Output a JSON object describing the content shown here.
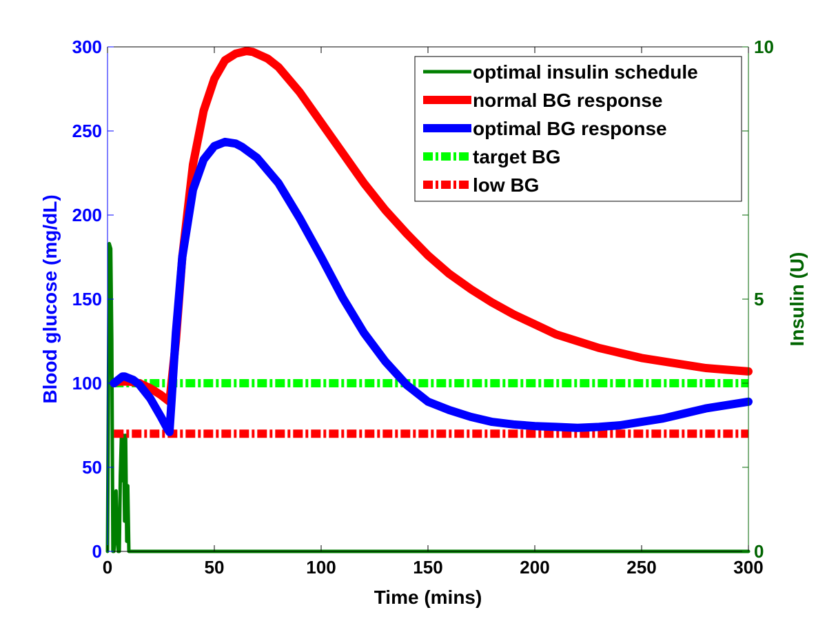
{
  "chart_data": {
    "type": "line",
    "title": "",
    "xlabel": "Time (mins)",
    "ylabel_left": "Blood glucose (mg/dL)",
    "ylabel_right": "Insulin (U)",
    "xlim": [
      0,
      300
    ],
    "ylim_left": [
      0,
      300
    ],
    "ylim_right": [
      0,
      10
    ],
    "x_ticks": [
      0,
      50,
      100,
      150,
      200,
      250,
      300
    ],
    "x_tick_labels": [
      "0",
      "50",
      "100",
      "150",
      "200",
      "250",
      "300"
    ],
    "y_left_ticks": [
      0,
      50,
      100,
      150,
      200,
      250,
      300
    ],
    "y_left_tick_labels": [
      "0",
      "50",
      "100",
      "150",
      "200",
      "250",
      "300"
    ],
    "y_right_ticks": [
      0,
      5,
      10
    ],
    "y_right_tick_labels": [
      "0",
      "5",
      "10"
    ],
    "grid": false,
    "legend_position": "top-right",
    "colors": {
      "left_axis": "#0000ff",
      "right_axis": "#006400",
      "insulin": "#007f00",
      "normal": "#ff0000",
      "optimal": "#0000ff",
      "target": "#00ff00",
      "low": "#ff0000"
    },
    "series": [
      {
        "name": "optimal insulin schedule",
        "axis": "right",
        "style": "step",
        "x": [
          0,
          0.8,
          1.5,
          2,
          2.5,
          3,
          3.5,
          4,
          4.5,
          5,
          5.5,
          6,
          6.5,
          7,
          7.5,
          8,
          8.5,
          9,
          9.5,
          10,
          11,
          300
        ],
        "values": [
          0,
          6.1,
          6.0,
          4.2,
          0,
          0,
          0.4,
          1.2,
          0.3,
          0,
          0,
          1.5,
          2.3,
          1.4,
          2.3,
          0.6,
          2.3,
          0.2,
          1.3,
          0,
          0,
          0
        ]
      },
      {
        "name": "normal BG response",
        "axis": "left",
        "style": "solid",
        "x": [
          3,
          5,
          8,
          10,
          15,
          20,
          25,
          29,
          32,
          35,
          40,
          45,
          50,
          55,
          60,
          65,
          68,
          75,
          80,
          90,
          100,
          110,
          120,
          130,
          140,
          150,
          160,
          170,
          180,
          190,
          200,
          210,
          220,
          230,
          240,
          250,
          260,
          270,
          280,
          290,
          300
        ],
        "values": [
          100,
          101,
          101,
          101,
          100,
          97,
          93,
          89,
          125,
          175,
          230,
          262,
          281,
          292,
          296,
          297.5,
          297,
          293,
          288,
          273,
          255,
          237,
          219,
          203,
          189,
          176,
          165,
          156,
          148,
          141,
          135,
          129,
          125,
          121,
          118,
          115,
          113,
          111,
          109,
          108,
          107
        ]
      },
      {
        "name": "optimal BG response",
        "axis": "left",
        "style": "solid",
        "x": [
          3,
          5,
          7,
          8,
          10,
          12,
          15,
          20,
          25,
          28,
          29,
          30,
          32,
          35,
          40,
          45,
          50,
          55,
          60,
          63,
          70,
          80,
          90,
          100,
          110,
          120,
          130,
          140,
          150,
          160,
          170,
          180,
          190,
          200,
          210,
          220,
          230,
          240,
          250,
          260,
          270,
          280,
          290,
          300
        ],
        "values": [
          100,
          102,
          104,
          104,
          103,
          102,
          99,
          91,
          80,
          73,
          71,
          90,
          130,
          175,
          215,
          233,
          241,
          243.5,
          242.5,
          240.5,
          234,
          219,
          198,
          175,
          151,
          130,
          113,
          99,
          89,
          84,
          80,
          77,
          75.5,
          74.5,
          74,
          73.5,
          74,
          75,
          77,
          79,
          82,
          85,
          87,
          89
        ]
      },
      {
        "name": "target BG",
        "axis": "left",
        "style": "dashdot",
        "x": [
          3,
          300
        ],
        "values": [
          100,
          100
        ]
      },
      {
        "name": "low BG",
        "axis": "left",
        "style": "dashdot",
        "x": [
          3,
          300
        ],
        "values": [
          70,
          70
        ]
      }
    ]
  }
}
